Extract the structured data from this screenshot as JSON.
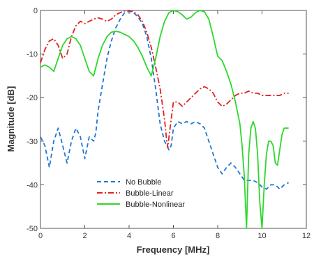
{
  "chart_data": {
    "type": "line",
    "xlabel": "Frequency [MHz]",
    "ylabel": "Magnitude [dB]",
    "xlim": [
      0,
      12
    ],
    "ylim": [
      -50,
      0
    ],
    "x_ticks": [
      0,
      2,
      4,
      6,
      8,
      10,
      12
    ],
    "y_ticks": [
      0,
      -10,
      -20,
      -30,
      -40,
      -50
    ],
    "grid": false,
    "legend_position": "lower-left",
    "series": [
      {
        "name": "No Bubble",
        "color": "#1f77d4",
        "dash": "dashed",
        "x": [
          0,
          0.2,
          0.4,
          0.6,
          0.8,
          1.0,
          1.2,
          1.4,
          1.6,
          1.8,
          2.0,
          2.2,
          2.4,
          2.5,
          2.6,
          2.8,
          3.0,
          3.2,
          3.4,
          3.6,
          3.8,
          4.0,
          4.2,
          4.4,
          4.6,
          4.8,
          5.0,
          5.2,
          5.4,
          5.6,
          5.8,
          5.9,
          6.0,
          6.2,
          6.4,
          6.6,
          6.8,
          7.0,
          7.2,
          7.4,
          7.6,
          7.8,
          8.0,
          8.2,
          8.4,
          8.6,
          8.8,
          9.0,
          9.2,
          9.4,
          9.6,
          9.8,
          10.0,
          10.2,
          10.4,
          10.6,
          10.8,
          11.0,
          11.2
        ],
        "values": [
          -29,
          -31,
          -36,
          -30,
          -27,
          -31,
          -35,
          -30,
          -27,
          -29,
          -34,
          -29,
          -30,
          -28,
          -23,
          -17,
          -11,
          -7,
          -4,
          -2,
          -0.5,
          -0.2,
          -0.5,
          -1.5,
          -3,
          -6,
          -11,
          -18,
          -26,
          -30,
          -32,
          -31,
          -27,
          -25.5,
          -26,
          -25.5,
          -26,
          -25.5,
          -26,
          -27,
          -30,
          -33,
          -36,
          -37.5,
          -36,
          -35,
          -36,
          -37.5,
          -39,
          -39,
          -39,
          -39.5,
          -40.5,
          -41,
          -40,
          -40,
          -41,
          -40,
          -39.5
        ]
      },
      {
        "name": "Bubble-Linear",
        "color": "#e02020",
        "dash": "dash-dot",
        "x": [
          0,
          0.2,
          0.4,
          0.6,
          0.8,
          1.0,
          1.2,
          1.4,
          1.6,
          1.8,
          2.0,
          2.2,
          2.4,
          2.6,
          2.8,
          3.0,
          3.2,
          3.4,
          3.6,
          3.8,
          4.0,
          4.2,
          4.4,
          4.6,
          4.8,
          5.0,
          5.2,
          5.4,
          5.6,
          5.7,
          5.75,
          5.8,
          5.9,
          6.0,
          6.2,
          6.4,
          6.6,
          6.8,
          7.0,
          7.2,
          7.4,
          7.6,
          7.8,
          8.0,
          8.2,
          8.4,
          8.6,
          8.8,
          9.0,
          9.2,
          9.4,
          9.6,
          9.8,
          10.0,
          10.2,
          10.4,
          10.6,
          10.8,
          11.0,
          11.2
        ],
        "values": [
          -12,
          -9,
          -7,
          -6.5,
          -8,
          -11,
          -10,
          -6,
          -3.5,
          -2.5,
          -3,
          -2.5,
          -2,
          -1.7,
          -2,
          -2.5,
          -2,
          -1,
          -0.5,
          -0.1,
          0,
          -0.3,
          -1,
          -2.5,
          -5,
          -8.5,
          -13,
          -18,
          -25,
          -30,
          -31.5,
          -29,
          -25,
          -21,
          -21,
          -22,
          -21,
          -20,
          -19,
          -18,
          -17.5,
          -18,
          -19,
          -21,
          -22,
          -21.5,
          -20.5,
          -19.5,
          -19,
          -19,
          -18.5,
          -19,
          -19,
          -19.5,
          -19.5,
          -19.5,
          -19.5,
          -19.5,
          -19,
          -19
        ]
      },
      {
        "name": "Bubble-Nonlinear",
        "color": "#2cd82c",
        "dash": "solid",
        "x": [
          0,
          0.2,
          0.4,
          0.6,
          0.8,
          1.0,
          1.2,
          1.4,
          1.6,
          1.8,
          2.0,
          2.2,
          2.4,
          2.6,
          2.8,
          3.0,
          3.2,
          3.4,
          3.6,
          3.8,
          4.0,
          4.2,
          4.4,
          4.6,
          4.8,
          5.0,
          5.2,
          5.4,
          5.6,
          5.8,
          6.0,
          6.2,
          6.4,
          6.6,
          6.8,
          7.0,
          7.2,
          7.4,
          7.6,
          7.8,
          8.0,
          8.2,
          8.4,
          8.6,
          8.8,
          9.0,
          9.1,
          9.2,
          9.3,
          9.4,
          9.5,
          9.6,
          9.7,
          9.8,
          9.9,
          10.0,
          10.1,
          10.2,
          10.3,
          10.4,
          10.5,
          10.6,
          10.7,
          10.8,
          10.9,
          11.0,
          11.1,
          11.2
        ],
        "values": [
          -13,
          -12.5,
          -13,
          -14,
          -11,
          -8,
          -6.5,
          -6,
          -6.5,
          -8,
          -11,
          -14,
          -15,
          -11,
          -8,
          -6,
          -5,
          -4.8,
          -5,
          -5.5,
          -6,
          -7,
          -8.5,
          -10.5,
          -13,
          -15,
          -11,
          -6,
          -2.5,
          -0.5,
          0,
          -0.3,
          -1,
          -2,
          -1.5,
          -0.5,
          0,
          -0.3,
          -2,
          -6,
          -10.5,
          -11.5,
          -14,
          -17,
          -21,
          -26,
          -31,
          -38,
          -50,
          -33,
          -27,
          -25.5,
          -27,
          -33,
          -44,
          -50,
          -40,
          -33,
          -30,
          -30,
          -31,
          -35,
          -35.5,
          -32,
          -28.5,
          -27,
          -27,
          -27
        ]
      }
    ]
  }
}
